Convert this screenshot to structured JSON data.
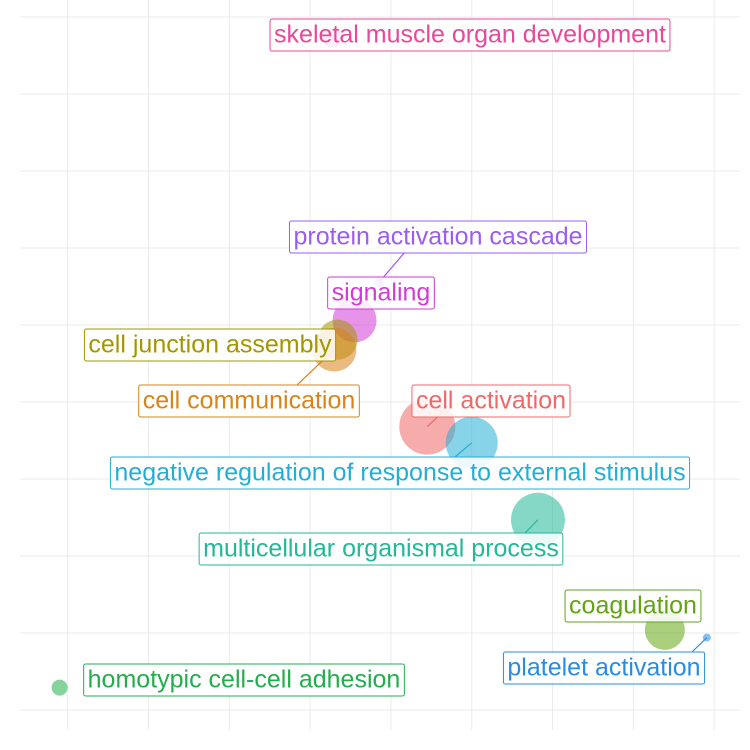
{
  "chart_data": {
    "type": "scatter",
    "grid": true,
    "xlim": [
      -0.59,
      8.32
    ],
    "ylim": [
      -0.26,
      9.22
    ],
    "xticks": [
      0,
      1,
      2,
      3,
      4,
      5,
      6,
      7,
      8
    ],
    "yticks": [
      0,
      1,
      2,
      3,
      4,
      5,
      6,
      7,
      8,
      9
    ],
    "series": [
      {
        "name": "skeletal muscle organ development",
        "color": "#e8489a",
        "x": [
          3.28
        ],
        "values": [
          8.73
        ],
        "sizes": [
          10
        ]
      },
      {
        "name": "protein activation cascade",
        "color": "#9d5cf0",
        "x": [
          3.85
        ],
        "values": [
          5.55
        ],
        "sizes": [
          5
        ]
      },
      {
        "name": "signaling",
        "color": "#d43ad8",
        "x": [
          3.55
        ],
        "values": [
          5.06
        ],
        "sizes": [
          22
        ]
      },
      {
        "name": "cell junction assembly",
        "color": "#a39600",
        "x": [
          3.34
        ],
        "values": [
          4.81
        ],
        "sizes": [
          20
        ]
      },
      {
        "name": "cell communication",
        "color": "#d8841a",
        "x": [
          3.3
        ],
        "values": [
          4.68
        ],
        "sizes": [
          22
        ]
      },
      {
        "name": "cell activation",
        "color": "#f06868",
        "x": [
          4.45
        ],
        "values": [
          3.68
        ],
        "sizes": [
          28
        ]
      },
      {
        "name": "negative regulation of response to external stimulus",
        "color": "#25aed3",
        "x": [
          5.0
        ],
        "values": [
          3.47
        ],
        "sizes": [
          26
        ]
      },
      {
        "name": "multicellular organismal process",
        "color": "#22b898",
        "x": [
          5.82
        ],
        "values": [
          2.47
        ],
        "sizes": [
          27
        ]
      },
      {
        "name": "coagulation",
        "color": "#62a514",
        "x": [
          7.39
        ],
        "values": [
          1.04
        ],
        "sizes": [
          20
        ]
      },
      {
        "name": "platelet activation",
        "color": "#2a8ce0",
        "x": [
          7.91
        ],
        "values": [
          0.94
        ],
        "sizes": [
          4
        ]
      },
      {
        "name": "homotypic cell-cell adhesion",
        "color": "#22ae4c",
        "x": [
          -0.1
        ],
        "values": [
          0.29
        ],
        "sizes": [
          8
        ]
      }
    ]
  }
}
